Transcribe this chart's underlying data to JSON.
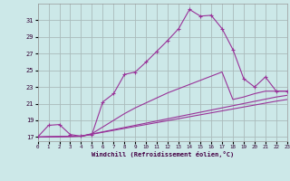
{
  "background_color": "#cce8e8",
  "grid_color": "#aabbbb",
  "line_color": "#993399",
  "xlabel": "Windchill (Refroidissement éolien,°C)",
  "xlim": [
    0,
    23
  ],
  "ylim": [
    16.5,
    33.0
  ],
  "yticks": [
    17,
    19,
    21,
    23,
    25,
    27,
    29,
    31
  ],
  "xticks": [
    0,
    1,
    2,
    3,
    4,
    5,
    6,
    7,
    8,
    9,
    10,
    11,
    12,
    13,
    14,
    15,
    16,
    17,
    18,
    19,
    20,
    21,
    22,
    23
  ],
  "curve1_x": [
    0,
    1,
    2,
    3,
    4,
    5,
    6,
    7,
    8,
    9,
    10,
    11,
    12,
    13,
    14,
    15,
    16,
    17,
    18,
    19,
    20,
    21,
    22,
    23
  ],
  "curve1_y": [
    17.0,
    18.4,
    18.5,
    17.3,
    17.1,
    17.3,
    21.2,
    22.2,
    24.5,
    24.8,
    26.0,
    27.3,
    28.6,
    30.0,
    32.3,
    31.5,
    31.6,
    30.0,
    27.5,
    24.0,
    23.0,
    24.2,
    22.5,
    22.5
  ],
  "curve2_x": [
    0,
    4,
    5,
    6,
    7,
    8,
    9,
    10,
    11,
    12,
    13,
    14,
    15,
    16,
    17,
    18,
    19,
    20,
    21,
    22,
    23
  ],
  "curve2_y": [
    17.0,
    17.1,
    17.4,
    18.2,
    19.0,
    19.8,
    20.5,
    21.1,
    21.7,
    22.3,
    22.8,
    23.3,
    23.8,
    24.3,
    24.8,
    21.5,
    21.8,
    22.2,
    22.5,
    22.5,
    22.5
  ],
  "line3_x": [
    0,
    4,
    22,
    23
  ],
  "line3_y": [
    17.0,
    17.1,
    21.8,
    22.0
  ],
  "line4_x": [
    0,
    4,
    22,
    23
  ],
  "line4_y": [
    17.0,
    17.1,
    21.3,
    21.5
  ]
}
